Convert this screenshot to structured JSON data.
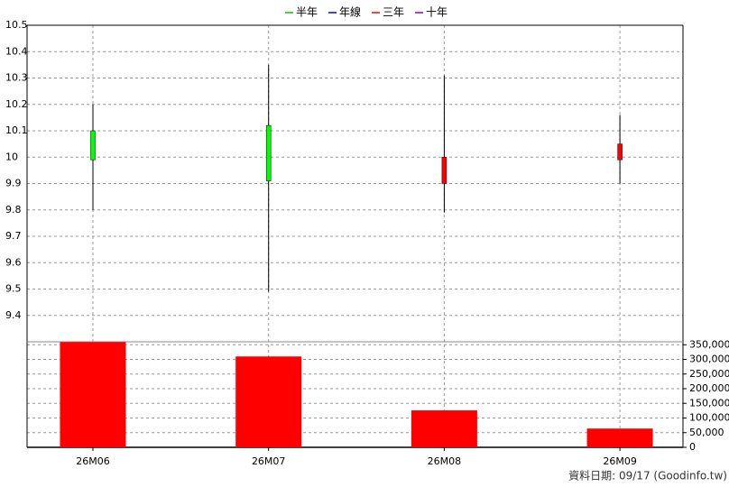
{
  "legend": [
    {
      "name": "半年",
      "color": "#00cc00"
    },
    {
      "name": "年線",
      "color": "#0000ff"
    },
    {
      "name": "三年",
      "color": "#ff0000"
    },
    {
      "name": "十年",
      "color": "#8000ff"
    }
  ],
  "chart_data": [
    {
      "type": "candlestick",
      "open": [
        10.1,
        10.12,
        9.9,
        9.99
      ],
      "high": [
        10.2,
        10.35,
        10.31,
        10.16
      ],
      "low": [
        9.8,
        9.49,
        9.79,
        9.9
      ],
      "close": [
        9.99,
        9.91,
        10.0,
        10.05
      ],
      "up_color": "#ff0000",
      "down_color": "#00ff00",
      "ylim": [
        9.3,
        10.5
      ],
      "yticks": [
        9.4,
        9.5,
        9.6,
        9.7,
        9.8,
        9.9,
        10,
        10.1,
        10.2,
        10.3,
        10.4,
        10.5
      ],
      "grid": true
    },
    {
      "type": "bar",
      "categories": [
        "26M06",
        "26M07",
        "26M08",
        "26M09"
      ],
      "values": [
        359000,
        310000,
        126000,
        64000
      ],
      "color": "#ff0000",
      "ylim": [
        0,
        360000
      ],
      "yticks": [
        0,
        {
          "value": 50000,
          "label": "50,000"
        },
        {
          "value": 100000,
          "label": "100,000"
        },
        {
          "value": 150000,
          "label": "150,000"
        },
        {
          "value": 200000,
          "label": "200,000"
        },
        {
          "value": 250000,
          "label": "250,000"
        },
        {
          "value": 300000,
          "label": "300,000"
        },
        {
          "value": 350000,
          "label": "350,000"
        }
      ],
      "grid": true
    }
  ],
  "source": "資料日期: 09/17  (Goodinfo.tw)"
}
